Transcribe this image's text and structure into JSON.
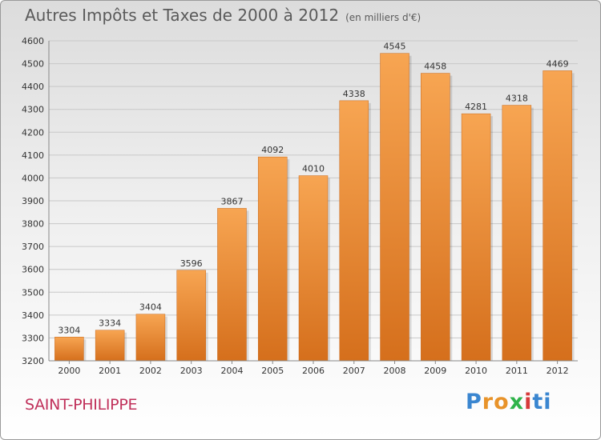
{
  "header": {
    "title": "Autres Impôts et Taxes de 2000 à 2012",
    "subtitle": "(en milliers d'€)"
  },
  "footer": {
    "location": "SAINT-PHILIPPE",
    "logo_text": "Proxiti"
  },
  "colors": {
    "bar": "#f0903a",
    "grid": "#c8c8c8",
    "axis_text": "#333333",
    "location": "#c0305a"
  },
  "chart_data": {
    "type": "bar",
    "title": "Autres Impôts et Taxes de 2000 à 2012",
    "subtitle": "(en milliers d'€)",
    "categories": [
      "2000",
      "2001",
      "2002",
      "2003",
      "2004",
      "2005",
      "2006",
      "2007",
      "2008",
      "2009",
      "2010",
      "2011",
      "2012"
    ],
    "values": [
      3304,
      3334,
      3404,
      3596,
      3867,
      4092,
      4010,
      4338,
      4545,
      4458,
      4281,
      4318,
      4469
    ],
    "ylim": [
      3200,
      4600
    ],
    "yticks": [
      3200,
      3300,
      3400,
      3500,
      3600,
      3700,
      3800,
      3900,
      4000,
      4100,
      4200,
      4300,
      4400,
      4500,
      4600
    ],
    "grid": true,
    "xlabel": "",
    "ylabel": ""
  }
}
